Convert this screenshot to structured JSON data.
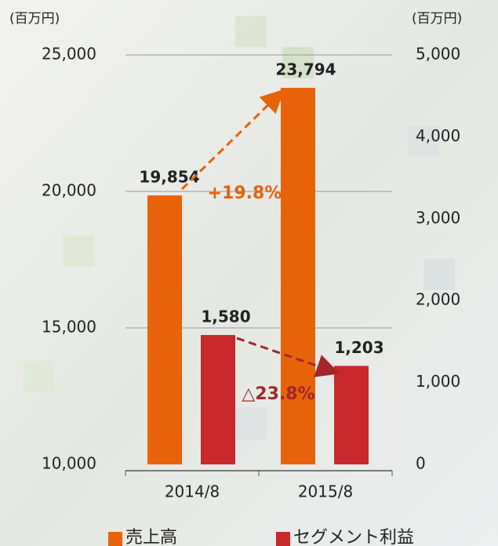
{
  "chart_data": {
    "type": "bar",
    "y_unit_label": "(百万円)",
    "y2_unit_label": "(百万円)",
    "categories": [
      "2014/8",
      "2015/8"
    ],
    "series": [
      {
        "name": "売上高",
        "color": "#e8620a",
        "values": [
          19854,
          23794
        ],
        "value_labels": [
          "19,854",
          "23,794"
        ]
      },
      {
        "name": "セグメント利益",
        "color": "#c9282d",
        "axis": "y2",
        "values": [
          1580,
          1203
        ],
        "value_labels": [
          "1,580",
          "1,203"
        ]
      }
    ],
    "ylim": [
      10000,
      25000
    ],
    "yticks": [
      {
        "value": 10000,
        "label": "10,000"
      },
      {
        "value": 15000,
        "label": "15,000"
      },
      {
        "value": 20000,
        "label": "20,000"
      },
      {
        "value": 25000,
        "label": "25,000"
      }
    ],
    "y2lim": [
      0,
      5000
    ],
    "y2ticks": [
      0,
      {
        "value": 1000,
        "label": "1,000"
      },
      {
        "value": 2000,
        "label": "2,000"
      },
      {
        "value": 3000,
        "label": "3,000"
      },
      {
        "value": 4000,
        "label": "4,000"
      },
      {
        "value": 5000,
        "label": "5,000"
      }
    ],
    "annotations": [
      {
        "text": "+19.8%",
        "color": "#e8620a"
      },
      {
        "text": "△23.8%",
        "color": "#a3262a"
      }
    ],
    "grid": true,
    "legend": "bottom"
  }
}
